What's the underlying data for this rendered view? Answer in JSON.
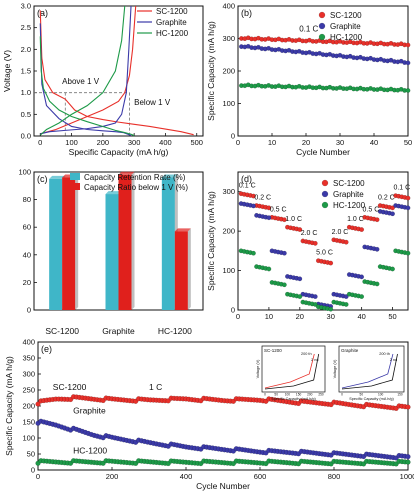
{
  "colors": {
    "red": "#e8302a",
    "blue": "#3b3aa8",
    "green": "#1d9a48",
    "cyan": "#3fb6c8",
    "bar_red": "#e0201c",
    "gray_dash": "#777777"
  },
  "chart_data": [
    {
      "panel": "(a)",
      "type": "line",
      "xlabel": "Specific Capacity (mA h/g)",
      "ylabel": "Voltage (V)",
      "xlim": [
        -20,
        520
      ],
      "ylim": [
        0,
        3.0
      ],
      "xticks": [
        0,
        100,
        200,
        300,
        400,
        500
      ],
      "yticks": [
        0.0,
        0.5,
        1.0,
        1.5,
        2.0,
        2.5,
        3.0
      ],
      "legend_position": "top-right",
      "annotations": [
        "Above 1 V",
        "Below 1 V"
      ],
      "series": [
        {
          "name": "SC-1200",
          "color": "red",
          "discharge": {
            "x": [
              0,
              5,
              15,
              40,
              80,
              110,
              150,
              200,
              250,
              300,
              350,
              400,
              450,
              490
            ],
            "y": [
              2.9,
              1.8,
              1.3,
              1.0,
              0.85,
              0.6,
              0.45,
              0.38,
              0.32,
              0.27,
              0.22,
              0.16,
              0.1,
              0.03
            ]
          },
          "charge": {
            "x": [
              0,
              50,
              100,
              150,
              200,
              250,
              270,
              285,
              295,
              305
            ],
            "y": [
              0.05,
              0.15,
              0.3,
              0.45,
              0.6,
              0.8,
              1.0,
              1.4,
              2.0,
              3.0
            ]
          }
        },
        {
          "name": "Graphite",
          "color": "blue",
          "discharge": {
            "x": [
              0,
              5,
              20,
              60,
              100,
              150,
              200,
              240,
              265,
              280,
              290
            ],
            "y": [
              2.6,
              1.2,
              0.7,
              0.4,
              0.22,
              0.15,
              0.12,
              0.1,
              0.08,
              0.04,
              0.01
            ]
          },
          "charge": {
            "x": [
              0,
              30,
              80,
              150,
              200,
              240,
              260,
              275,
              283,
              290
            ],
            "y": [
              0.05,
              0.1,
              0.13,
              0.17,
              0.22,
              0.3,
              0.5,
              1.0,
              2.0,
              3.0
            ]
          }
        },
        {
          "name": "HC-1200",
          "color": "green",
          "discharge": {
            "x": [
              0,
              3,
              10,
              30,
              60,
              100,
              150,
              200,
              240,
              270,
              290,
              300
            ],
            "y": [
              2.3,
              1.5,
              1.1,
              0.8,
              0.6,
              0.45,
              0.33,
              0.22,
              0.13,
              0.08,
              0.04,
              0.01
            ]
          },
          "charge": {
            "x": [
              0,
              20,
              60,
              100,
              150,
              200,
              240,
              260,
              270
            ],
            "y": [
              0.02,
              0.15,
              0.3,
              0.5,
              0.7,
              1.0,
              1.5,
              2.2,
              3.0
            ]
          }
        }
      ]
    },
    {
      "panel": "(b)",
      "type": "scatter",
      "xlabel": "Cycle Number",
      "ylabel": "Specific Capacity (mA h/g)",
      "xlim": [
        0,
        50
      ],
      "ylim": [
        0,
        400
      ],
      "xticks": [
        0,
        10,
        20,
        30,
        40,
        50
      ],
      "yticks": [
        0,
        100,
        200,
        300,
        400
      ],
      "annotation": "0.1 C",
      "legend_position": "top-right",
      "series": [
        {
          "name": "SC-1200",
          "color": "red",
          "start": 300,
          "end": 280
        },
        {
          "name": "Graphite",
          "color": "blue",
          "start": 275,
          "end": 225
        },
        {
          "name": "HC-1200",
          "color": "green",
          "start": 155,
          "end": 140
        }
      ]
    },
    {
      "panel": "(c)",
      "type": "bar",
      "categories": [
        "SC-1200",
        "Graphite",
        "HC-1200"
      ],
      "ylim": [
        0,
        100
      ],
      "yticks": [
        0,
        20,
        40,
        60,
        80,
        100
      ],
      "legend_position": "top-left",
      "series": [
        {
          "name": "Capacity Retention Rate (%)",
          "color": "cyan",
          "values": [
            95,
            84,
            96
          ]
        },
        {
          "name": "Capacity Ratio below 1 V (%)",
          "color": "bar_red",
          "values": [
            96,
            98,
            57
          ]
        }
      ]
    },
    {
      "panel": "(d)",
      "type": "scatter",
      "xlabel": "",
      "ylabel": "Specific Capacity (mA h/g)",
      "xlim": [
        0,
        55
      ],
      "ylim": [
        0,
        350
      ],
      "xticks": [
        0,
        10,
        20,
        30,
        40,
        50
      ],
      "yticks": [
        0,
        100,
        200,
        300
      ],
      "legend_position": "top-right",
      "rate_labels": [
        "0.1 C",
        "0.2 C",
        "0.5 C",
        "1.0 C",
        "2.0 C",
        "5.0 C",
        "2.0 C",
        "1.0 C",
        "0.5 C",
        "0.2 C",
        "0.1 C"
      ],
      "rate_label_cycles": [
        3,
        8,
        13,
        18,
        23,
        28,
        33,
        38,
        43,
        48,
        53
      ],
      "series": [
        {
          "name": "SC-1200",
          "color": "red",
          "segments": [
            295,
            265,
            235,
            210,
            175,
            125,
            178,
            210,
            235,
            265,
            290
          ]
        },
        {
          "name": "Graphite",
          "color": "blue",
          "segments": [
            270,
            240,
            150,
            85,
            40,
            15,
            40,
            90,
            160,
            250,
            265
          ]
        },
        {
          "name": "HC-1200",
          "color": "green",
          "segments": [
            150,
            110,
            70,
            40,
            20,
            8,
            20,
            40,
            72,
            110,
            150
          ]
        }
      ]
    },
    {
      "panel": "(e)",
      "type": "scatter",
      "xlabel": "Cycle Number",
      "ylabel": "Specific Capacity (mA h/g)",
      "xlim": [
        0,
        1000
      ],
      "ylim": [
        0,
        400
      ],
      "xticks": [
        0,
        200,
        400,
        600,
        800,
        1000
      ],
      "yticks": [
        0,
        50,
        100,
        150,
        200,
        250,
        300,
        350,
        400
      ],
      "annotation": "1 C",
      "series": [
        {
          "name": "SC-1200",
          "color": "red",
          "x": [
            0,
            50,
            100,
            200,
            300,
            400,
            500,
            600,
            700,
            800,
            900,
            1000
          ],
          "y": [
            210,
            222,
            225,
            220,
            218,
            222,
            218,
            220,
            212,
            208,
            200,
            195
          ]
        },
        {
          "name": "Graphite",
          "color": "blue",
          "x": [
            0,
            50,
            100,
            150,
            200,
            300,
            400,
            500,
            600,
            700,
            800,
            900,
            1000
          ],
          "y": [
            150,
            140,
            125,
            110,
            100,
            85,
            72,
            65,
            58,
            55,
            50,
            45,
            40
          ]
        },
        {
          "name": "HC-1200",
          "color": "green",
          "x": [
            0,
            200,
            400,
            600,
            800,
            1000
          ],
          "y": [
            25,
            25,
            24,
            24,
            23,
            23
          ]
        }
      ],
      "insets": [
        {
          "title": "SC-1200",
          "labels": [
            "200 th",
            "2 nd"
          ],
          "xlabel": "Specific Capacity (mA h/g)",
          "ylabel": "Voltage (V)",
          "xticks": [
            0,
            50,
            100,
            150,
            200,
            250
          ]
        },
        {
          "title": "Graphite",
          "labels": [
            "200 th",
            "2 nd"
          ],
          "xlabel": "Specific Capacity (mA h/g)",
          "ylabel": "Voltage (V)",
          "xticks": [
            0,
            50,
            100,
            150
          ]
        }
      ]
    }
  ]
}
